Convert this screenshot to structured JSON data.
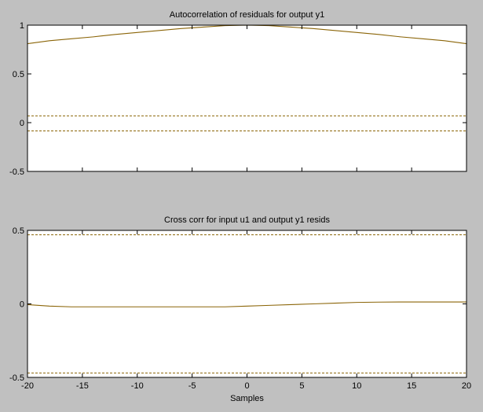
{
  "colors": {
    "figure_background": "#c0c0c0",
    "axes_background": "#ffffff",
    "axes_frame": "#000000",
    "curve": "#8b6508",
    "confidence_bound": "#8b6508"
  },
  "xlabel": "Samples",
  "chart_data": [
    {
      "type": "line",
      "title": "Autocorrelation of residuals for output y1",
      "xlabel": "",
      "ylabel": "",
      "xlim": [
        -20,
        20
      ],
      "ylim": [
        -0.5,
        1
      ],
      "xticks": [
        -20,
        -15,
        -10,
        -5,
        0,
        5,
        10,
        15,
        20
      ],
      "xtick_labels_shown": false,
      "yticks": [
        -0.5,
        0,
        0.5,
        1
      ],
      "ytick_labels": [
        "-0.5",
        "0",
        "0.5",
        "1"
      ],
      "grid": false,
      "x": [
        -20,
        -18,
        -16,
        -14,
        -12,
        -10,
        -8,
        -6,
        -4,
        -2,
        0,
        2,
        4,
        6,
        8,
        10,
        12,
        14,
        16,
        18,
        20
      ],
      "series": [
        {
          "values": [
            0.81,
            0.84,
            0.86,
            0.88,
            0.905,
            0.925,
            0.945,
            0.965,
            0.98,
            0.995,
            1.0,
            0.995,
            0.98,
            0.965,
            0.945,
            0.925,
            0.905,
            0.88,
            0.86,
            0.84,
            0.81
          ]
        }
      ],
      "confidence_bounds": [
        0.07,
        -0.085
      ]
    },
    {
      "type": "line",
      "title": "Cross corr for input u1 and output y1 resids",
      "xlabel": "Samples",
      "ylabel": "",
      "xlim": [
        -20,
        20
      ],
      "ylim": [
        -0.5,
        0.5
      ],
      "xticks": [
        -20,
        -15,
        -10,
        -5,
        0,
        5,
        10,
        15,
        20
      ],
      "xtick_labels": [
        "-20",
        "-15",
        "-10",
        "-5",
        "0",
        "5",
        "10",
        "15",
        "20"
      ],
      "yticks": [
        -0.5,
        0,
        0.5
      ],
      "ytick_labels": [
        "-0.5",
        "0",
        "0.5"
      ],
      "grid": false,
      "x": [
        -20,
        -18,
        -16,
        -14,
        -12,
        -10,
        -8,
        -6,
        -4,
        -2,
        0,
        2,
        4,
        6,
        8,
        10,
        12,
        14,
        16,
        18,
        20
      ],
      "series": [
        {
          "values": [
            -0.005,
            -0.015,
            -0.02,
            -0.02,
            -0.02,
            -0.02,
            -0.02,
            -0.02,
            -0.02,
            -0.02,
            -0.015,
            -0.01,
            -0.005,
            0.0,
            0.005,
            0.01,
            0.012,
            0.013,
            0.013,
            0.013,
            0.013
          ]
        }
      ],
      "confidence_bounds": [
        0.47,
        -0.47
      ]
    }
  ]
}
